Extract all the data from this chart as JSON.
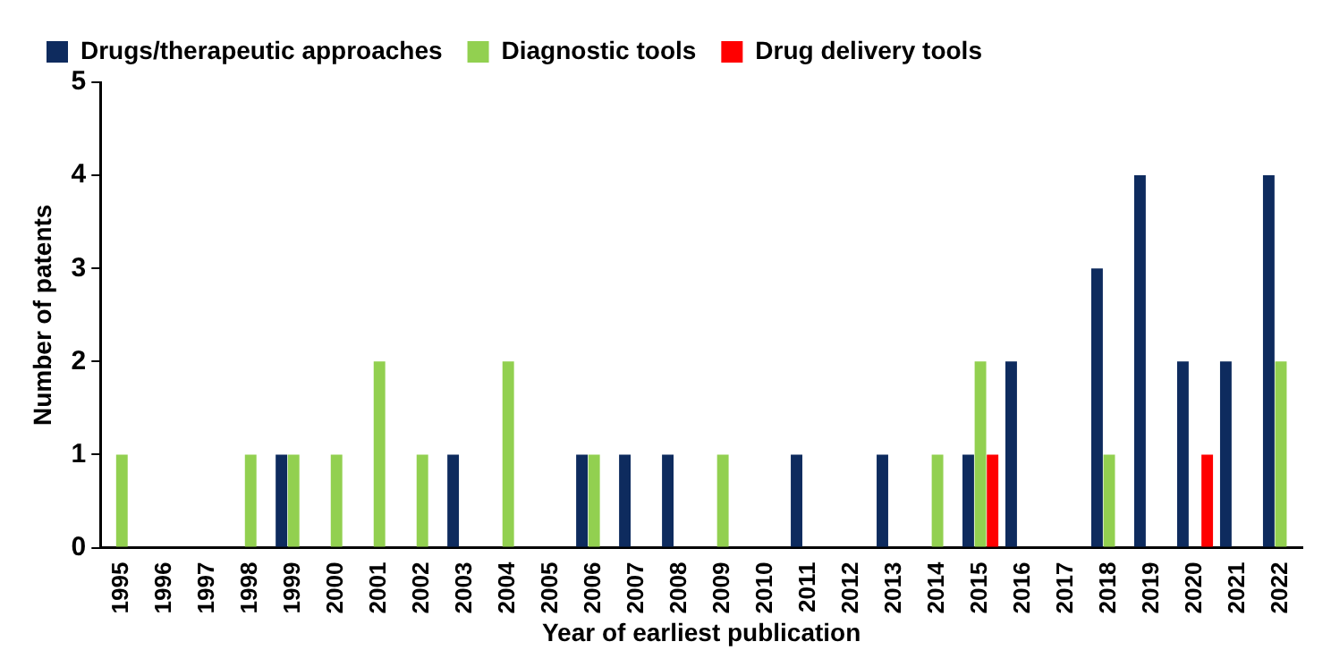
{
  "chart_data": {
    "type": "bar",
    "xlabel": "Year of earliest publication",
    "ylabel": "Number of patents",
    "categories": [
      "1995",
      "1996",
      "1997",
      "1998",
      "1999",
      "2000",
      "2001",
      "2002",
      "2003",
      "2004",
      "2005",
      "2006",
      "2007",
      "2008",
      "2009",
      "2010",
      "2011",
      "2012",
      "2013",
      "2014",
      "2015",
      "2016",
      "2017",
      "2018",
      "2019",
      "2020",
      "2021",
      "2022"
    ],
    "series": [
      {
        "name": "Drugs/therapeutic approaches",
        "color": "#0e2b5e",
        "values": [
          0,
          0,
          0,
          0,
          1,
          0,
          0,
          0,
          1,
          0,
          0,
          1,
          1,
          1,
          0,
          0,
          1,
          0,
          1,
          0,
          1,
          2,
          0,
          3,
          4,
          2,
          2,
          4
        ]
      },
      {
        "name": "Diagnostic tools",
        "color": "#92d050",
        "values": [
          1,
          0,
          0,
          1,
          1,
          1,
          2,
          1,
          0,
          2,
          0,
          1,
          0,
          0,
          1,
          0,
          0,
          0,
          0,
          1,
          2,
          0,
          0,
          1,
          0,
          0,
          0,
          2
        ]
      },
      {
        "name": "Drug delivery tools",
        "color": "#ff0000",
        "values": [
          0,
          0,
          0,
          0,
          0,
          0,
          0,
          0,
          0,
          0,
          0,
          0,
          0,
          0,
          0,
          0,
          0,
          0,
          0,
          0,
          1,
          0,
          0,
          0,
          0,
          1,
          0,
          0
        ]
      }
    ],
    "ylim": [
      0,
      5
    ],
    "yticks": [
      0,
      1,
      2,
      3,
      4,
      5
    ],
    "grid": false,
    "legend": "top left"
  }
}
